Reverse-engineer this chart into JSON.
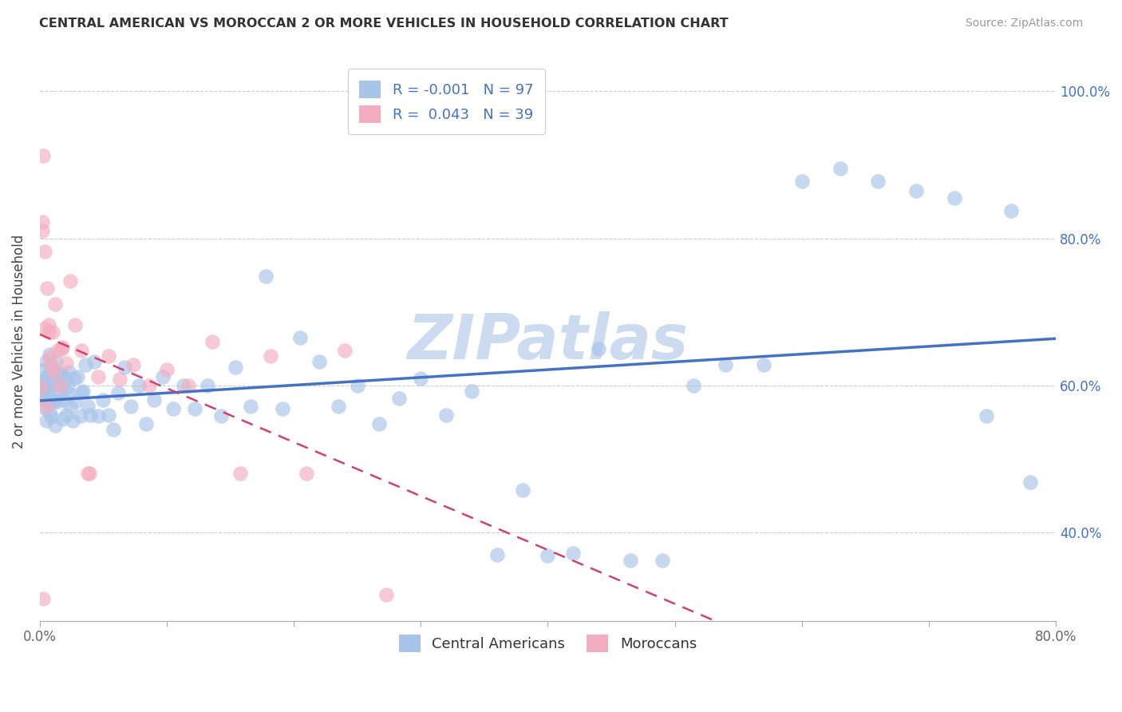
{
  "title": "CENTRAL AMERICAN VS MOROCCAN 2 OR MORE VEHICLES IN HOUSEHOLD CORRELATION CHART",
  "source": "Source: ZipAtlas.com",
  "ylabel": "2 or more Vehicles in Household",
  "legend_labels": [
    "Central Americans",
    "Moroccans"
  ],
  "legend_r": [
    -0.001,
    0.043
  ],
  "legend_n": [
    97,
    39
  ],
  "blue_color": "#a8c4e8",
  "pink_color": "#f4adc0",
  "trend_blue": "#4472c4",
  "trend_pink": "#d04070",
  "label_color": "#4472c4",
  "watermark": "ZIPatlas",
  "watermark_color": "#c8d8f0",
  "xlim": [
    0.0,
    0.8
  ],
  "ylim": [
    0.28,
    1.04
  ],
  "xtick_positions": [
    0.0,
    0.1,
    0.2,
    0.3,
    0.4,
    0.5,
    0.6,
    0.7,
    0.8
  ],
  "xtick_labels": [
    "0.0%",
    "",
    "",
    "",
    "",
    "",
    "",
    "",
    "80.0%"
  ],
  "yticks": [
    0.4,
    0.6,
    0.8,
    1.0
  ],
  "ytick_labels": [
    "40.0%",
    "60.0%",
    "80.0%",
    "100.0%"
  ],
  "blue_scatter_x": [
    0.001,
    0.002,
    0.002,
    0.003,
    0.003,
    0.004,
    0.005,
    0.005,
    0.006,
    0.007,
    0.007,
    0.008,
    0.008,
    0.009,
    0.01,
    0.01,
    0.011,
    0.012,
    0.013,
    0.014,
    0.015,
    0.016,
    0.017,
    0.018,
    0.019,
    0.02,
    0.021,
    0.022,
    0.023,
    0.024,
    0.026,
    0.028,
    0.03,
    0.032,
    0.034,
    0.036,
    0.038,
    0.04,
    0.043,
    0.046,
    0.05,
    0.054,
    0.058,
    0.062,
    0.067,
    0.072,
    0.078,
    0.084,
    0.09,
    0.097,
    0.105,
    0.113,
    0.122,
    0.132,
    0.143,
    0.154,
    0.166,
    0.178,
    0.191,
    0.205,
    0.22,
    0.235,
    0.25,
    0.267,
    0.283,
    0.3,
    0.32,
    0.34,
    0.36,
    0.38,
    0.4,
    0.42,
    0.44,
    0.465,
    0.49,
    0.515,
    0.54,
    0.57,
    0.6,
    0.63,
    0.66,
    0.69,
    0.72,
    0.745,
    0.765,
    0.78,
    0.003,
    0.004,
    0.006,
    0.008,
    0.01,
    0.012,
    0.015,
    0.018,
    0.022,
    0.027,
    0.033
  ],
  "blue_scatter_y": [
    0.59,
    0.58,
    0.62,
    0.6,
    0.57,
    0.61,
    0.552,
    0.632,
    0.578,
    0.598,
    0.615,
    0.642,
    0.564,
    0.557,
    0.622,
    0.578,
    0.612,
    0.545,
    0.632,
    0.578,
    0.59,
    0.6,
    0.615,
    0.554,
    0.58,
    0.61,
    0.56,
    0.59,
    0.618,
    0.572,
    0.552,
    0.578,
    0.612,
    0.558,
    0.592,
    0.628,
    0.572,
    0.56,
    0.632,
    0.558,
    0.58,
    0.56,
    0.54,
    0.59,
    0.625,
    0.572,
    0.6,
    0.548,
    0.58,
    0.612,
    0.568,
    0.6,
    0.568,
    0.6,
    0.558,
    0.625,
    0.572,
    0.748,
    0.568,
    0.665,
    0.632,
    0.572,
    0.6,
    0.548,
    0.582,
    0.61,
    0.56,
    0.592,
    0.37,
    0.458,
    0.368,
    0.372,
    0.65,
    0.362,
    0.362,
    0.6,
    0.628,
    0.628,
    0.878,
    0.895,
    0.878,
    0.865,
    0.855,
    0.558,
    0.838,
    0.468,
    0.6,
    0.592,
    0.608,
    0.598,
    0.602,
    0.58,
    0.615,
    0.6,
    0.598,
    0.61,
    0.59
  ],
  "pink_scatter_x": [
    0.001,
    0.002,
    0.002,
    0.003,
    0.004,
    0.004,
    0.005,
    0.006,
    0.007,
    0.008,
    0.009,
    0.01,
    0.011,
    0.012,
    0.014,
    0.016,
    0.018,
    0.021,
    0.024,
    0.028,
    0.033,
    0.039,
    0.046,
    0.054,
    0.063,
    0.074,
    0.086,
    0.1,
    0.117,
    0.136,
    0.158,
    0.182,
    0.21,
    0.24,
    0.273,
    0.038,
    0.017,
    0.007,
    0.003
  ],
  "pink_scatter_y": [
    0.598,
    0.81,
    0.822,
    0.912,
    0.678,
    0.782,
    0.572,
    0.732,
    0.682,
    0.638,
    0.628,
    0.672,
    0.618,
    0.71,
    0.648,
    0.6,
    0.652,
    0.63,
    0.742,
    0.682,
    0.648,
    0.48,
    0.612,
    0.64,
    0.608,
    0.628,
    0.6,
    0.622,
    0.6,
    0.66,
    0.48,
    0.64,
    0.48,
    0.648,
    0.315,
    0.48,
    0.65,
    0.672,
    0.31
  ]
}
